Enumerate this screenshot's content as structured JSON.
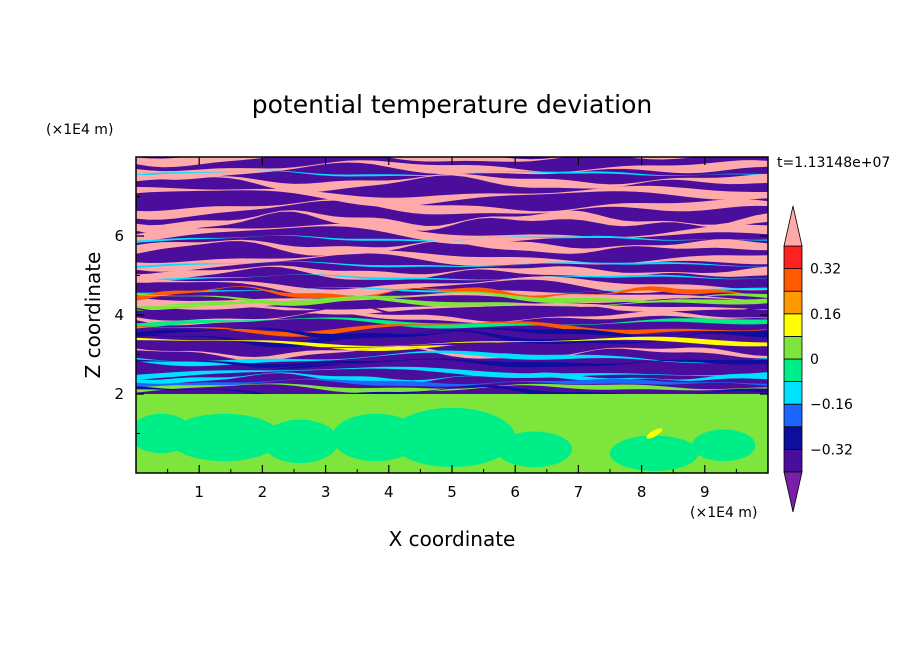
{
  "chart_data": {
    "type": "heatmap",
    "title": "potential temperature deviation",
    "xlabel": "X coordinate",
    "ylabel": "Z coordinate",
    "x_unit": "(×1E4 m)",
    "y_unit": "(×1E4 m)",
    "time_label": "t=1.13148e+07",
    "xlim": [
      0,
      10
    ],
    "ylim": [
      0,
      8
    ],
    "x_ticks": [
      "1",
      "2",
      "3",
      "4",
      "5",
      "6",
      "7",
      "8",
      "9"
    ],
    "y_ticks": [
      "2",
      "4",
      "6"
    ],
    "colorbar": {
      "levels": [
        -0.48,
        -0.4,
        -0.32,
        -0.24,
        -0.16,
        -0.08,
        0,
        0.08,
        0.16,
        0.24,
        0.32,
        0.4,
        0.48
      ],
      "colors": [
        "#7a1fa8",
        "#4b0d9c",
        "#0d0d9e",
        "#1a66ff",
        "#00e0ff",
        "#00ee88",
        "#7de53b",
        "#ffff00",
        "#ff9900",
        "#ff5a00",
        "#ff2020",
        "#ffaaaa"
      ],
      "labels": [
        "0.32",
        "0.16",
        "0",
        "−0.16",
        "−0.32"
      ]
    },
    "regions": [
      {
        "z_range": [
          0,
          2
        ],
        "description_colors": [
          "#7de53b",
          "#00ee88"
        ],
        "pattern": "cells"
      },
      {
        "z_range": [
          2,
          4.5
        ],
        "description_colors": [
          "#4b0d9c",
          "#0d0d9e",
          "#00e0ff",
          "#7de53b",
          "#ffff00",
          "#ff5a00",
          "#ffaaaa"
        ],
        "pattern": "mixed-layers"
      },
      {
        "z_range": [
          4.5,
          8
        ],
        "description_colors": [
          "#4b0d9c",
          "#ffaaaa"
        ],
        "pattern": "alternating-layers"
      }
    ]
  }
}
